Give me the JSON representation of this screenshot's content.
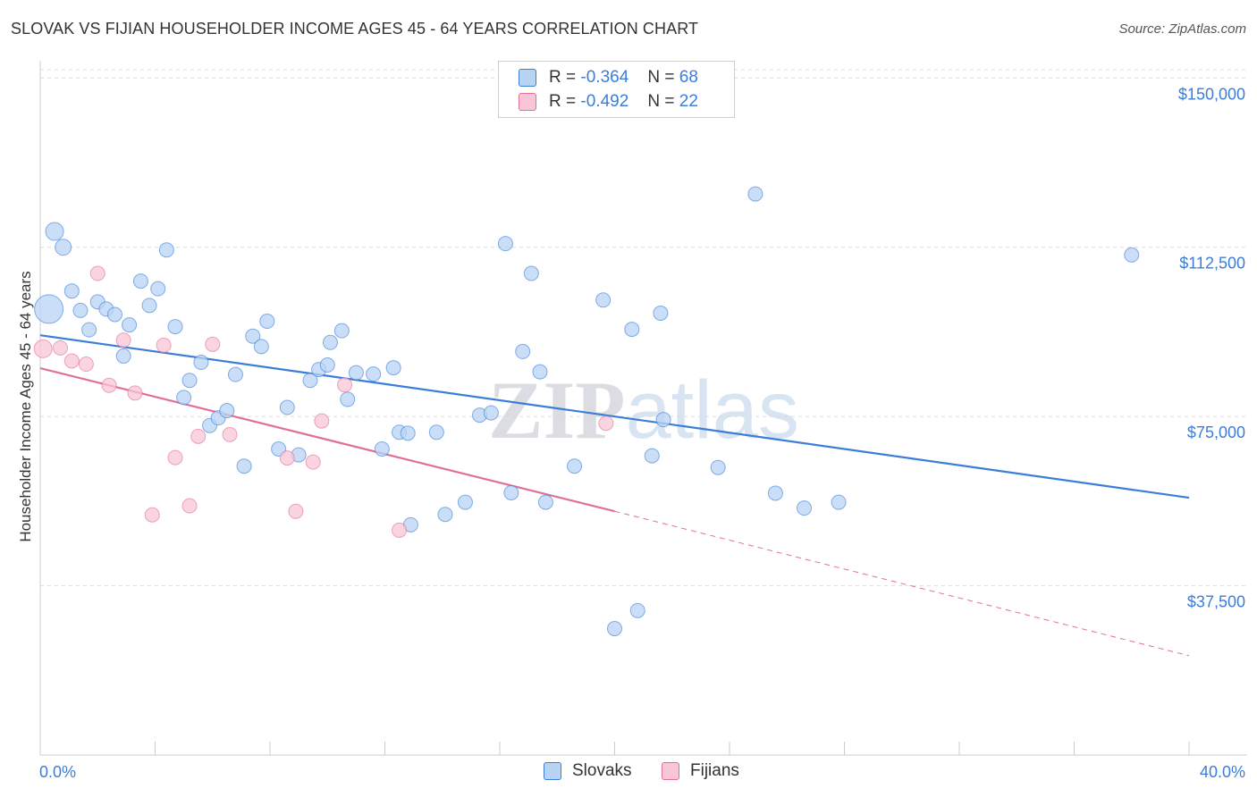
{
  "title": "SLOVAK VS FIJIAN HOUSEHOLDER INCOME AGES 45 - 64 YEARS CORRELATION CHART",
  "source": "Source: ZipAtlas.com",
  "watermark": "ZIPatlas",
  "legend": {
    "rows": [
      {
        "r_label": "R =",
        "r_value": "-0.364",
        "n_label": "N =",
        "n_value": "68"
      },
      {
        "r_label": "R =",
        "r_value": "-0.492",
        "n_label": "N =",
        "n_value": "22"
      }
    ]
  },
  "bottom_legend": {
    "slovaks": "Slovaks",
    "fijians": "Fijians"
  },
  "chart_data": {
    "type": "scatter",
    "title": "SLOVAK VS FIJIAN HOUSEHOLDER INCOME AGES 45 - 64 YEARS CORRELATION CHART",
    "xlabel": "",
    "ylabel": "Householder Income Ages 45 - 64 years",
    "xlim": [
      0,
      40
    ],
    "ylim": [
      0,
      155000
    ],
    "x_tick_labels": [
      "0.0%",
      "40.0%"
    ],
    "y_ticks": [
      37500,
      75000,
      112500,
      150000
    ],
    "y_tick_labels": [
      "$37,500",
      "$75,000",
      "$112,500",
      "$150,000"
    ],
    "colors": {
      "slovaks": "#3b7dd8",
      "fijians": "#e07098",
      "slovaks_fill": "#b8d4f4",
      "fijians_fill": "#f8c6d6"
    },
    "series": [
      {
        "name": "Slovaks",
        "points": [
          [
            0.3,
            98800,
            16
          ],
          [
            0.5,
            116000,
            10
          ],
          [
            0.8,
            112500,
            9
          ],
          [
            1.1,
            102800,
            8
          ],
          [
            1.4,
            98500,
            8
          ],
          [
            1.7,
            94200,
            8
          ],
          [
            2.0,
            100400,
            8
          ],
          [
            2.3,
            98800,
            8
          ],
          [
            2.6,
            97600,
            8
          ],
          [
            2.9,
            88400,
            8
          ],
          [
            3.1,
            95300,
            8
          ],
          [
            3.5,
            105000,
            8
          ],
          [
            3.8,
            99600,
            8
          ],
          [
            4.1,
            103300,
            8
          ],
          [
            4.4,
            111900,
            8
          ],
          [
            4.7,
            94900,
            8
          ],
          [
            5.0,
            79200,
            8
          ],
          [
            5.2,
            83000,
            8
          ],
          [
            5.6,
            87000,
            8
          ],
          [
            5.9,
            73000,
            8
          ],
          [
            6.2,
            74700,
            8
          ],
          [
            6.5,
            76300,
            8
          ],
          [
            6.8,
            84300,
            8
          ],
          [
            7.1,
            64000,
            8
          ],
          [
            7.4,
            92800,
            8
          ],
          [
            7.7,
            90500,
            8
          ],
          [
            7.9,
            96100,
            8
          ],
          [
            8.3,
            67800,
            8
          ],
          [
            8.6,
            77000,
            8
          ],
          [
            9.0,
            66500,
            8
          ],
          [
            9.4,
            83000,
            8
          ],
          [
            9.7,
            85400,
            8
          ],
          [
            10.0,
            86400,
            8
          ],
          [
            10.1,
            91400,
            8
          ],
          [
            10.5,
            94000,
            8
          ],
          [
            10.7,
            78800,
            8
          ],
          [
            11.0,
            84700,
            8
          ],
          [
            11.6,
            84400,
            8
          ],
          [
            11.9,
            67800,
            8
          ],
          [
            12.3,
            85800,
            8
          ],
          [
            12.5,
            71500,
            8
          ],
          [
            12.8,
            71300,
            8
          ],
          [
            12.9,
            51000,
            8
          ],
          [
            13.8,
            71500,
            8
          ],
          [
            14.1,
            53300,
            8
          ],
          [
            14.8,
            56000,
            8
          ],
          [
            15.3,
            75300,
            8
          ],
          [
            15.7,
            75800,
            8
          ],
          [
            16.2,
            113300,
            8
          ],
          [
            16.4,
            58100,
            8
          ],
          [
            16.8,
            89400,
            8
          ],
          [
            17.1,
            106700,
            8
          ],
          [
            17.4,
            84900,
            8
          ],
          [
            17.6,
            56000,
            8
          ],
          [
            18.6,
            64000,
            8
          ],
          [
            19.6,
            100800,
            8
          ],
          [
            20.0,
            28000,
            8
          ],
          [
            20.6,
            94300,
            8
          ],
          [
            20.8,
            32000,
            8
          ],
          [
            21.3,
            66300,
            8
          ],
          [
            21.6,
            97900,
            8
          ],
          [
            21.7,
            74300,
            8
          ],
          [
            23.6,
            63700,
            8
          ],
          [
            24.9,
            124300,
            8
          ],
          [
            25.6,
            58000,
            8
          ],
          [
            26.6,
            54700,
            8
          ],
          [
            27.8,
            56000,
            8
          ],
          [
            38.0,
            110800,
            8
          ]
        ]
      },
      {
        "name": "Fijians",
        "points": [
          [
            0.1,
            90000,
            10
          ],
          [
            0.7,
            90200,
            8
          ],
          [
            1.1,
            87300,
            8
          ],
          [
            1.6,
            86600,
            8
          ],
          [
            2.0,
            106700,
            8
          ],
          [
            2.4,
            81900,
            8
          ],
          [
            2.9,
            91900,
            8
          ],
          [
            3.3,
            80200,
            8
          ],
          [
            3.9,
            53200,
            8
          ],
          [
            4.3,
            90800,
            8
          ],
          [
            4.7,
            65900,
            8
          ],
          [
            5.2,
            55200,
            8
          ],
          [
            5.5,
            70600,
            8
          ],
          [
            6.0,
            91000,
            8
          ],
          [
            6.6,
            71000,
            8
          ],
          [
            8.6,
            65800,
            8
          ],
          [
            8.9,
            54000,
            8
          ],
          [
            9.5,
            64900,
            8
          ],
          [
            9.8,
            74000,
            8
          ],
          [
            10.6,
            82000,
            8
          ],
          [
            12.5,
            49800,
            8
          ],
          [
            19.7,
            73500,
            8
          ]
        ]
      }
    ],
    "trend_lines": [
      {
        "name": "Slovaks",
        "x": [
          0,
          40
        ],
        "y": [
          93000,
          57000
        ],
        "style": "solid"
      },
      {
        "name": "Fijians",
        "x": [
          0,
          20
        ],
        "y": [
          85700,
          54000
        ],
        "style": "solid"
      },
      {
        "name": "Fijians",
        "x": [
          20,
          40
        ],
        "y": [
          54000,
          22000
        ],
        "style": "dashed"
      }
    ]
  }
}
